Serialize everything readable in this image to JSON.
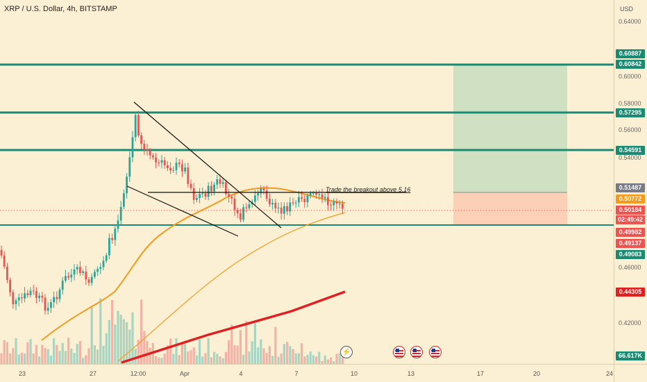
{
  "header": {
    "title": "XRP / U.S. Dollar, 4h, BITSTAMP"
  },
  "annotation": "Trade the breakout above 5.16",
  "price_axis": {
    "currency": "USD",
    "ticks": [
      "0.64000",
      "0.60000",
      "0.58000",
      "0.56000",
      "0.54000",
      "0.46000",
      "0.42000"
    ],
    "tags": [
      {
        "label": "0.60887",
        "color": "#1b8a72"
      },
      {
        "label": "0.60842",
        "color": "#1b8a72"
      },
      {
        "label": "0.57295",
        "color": "#1b8a72"
      },
      {
        "label": "0.54591",
        "color": "#1b8a72"
      },
      {
        "label": "0.51487",
        "color": "#787b86"
      },
      {
        "label": "0.50772",
        "color": "#f29b1d"
      },
      {
        "label": "0.50184",
        "color": "#ef5350"
      },
      {
        "label": "02:49:42",
        "color": "#ef5350"
      },
      {
        "label": "0.49982",
        "color": "#ef5350"
      },
      {
        "label": "0.49137",
        "color": "#ef5350"
      },
      {
        "label": "0.49083",
        "color": "#1b8a72"
      },
      {
        "label": "0.44305",
        "color": "#e02020"
      },
      {
        "label": "66.617K",
        "color": "#1b8a72"
      }
    ]
  },
  "time_axis": {
    "labels": [
      "23",
      "27",
      "12:00",
      "Apr",
      "4",
      "7",
      "10",
      "13",
      "17",
      "20",
      "24"
    ]
  },
  "colors": {
    "background": "#fbf0d3",
    "up": "#26a69a",
    "down": "#ef5350",
    "level_line": "#1b8a72",
    "ema_fast": "#f29b1d",
    "ema_slow": "#f29b1d",
    "trend_ma": "#e02020",
    "profit_zone": "#cfe0c3",
    "loss_zone": "#fbd0b7"
  },
  "events": {
    "icons": [
      "lightning-icon",
      "us-flag-icon",
      "us-flag-icon",
      "us-flag-icon"
    ]
  }
}
